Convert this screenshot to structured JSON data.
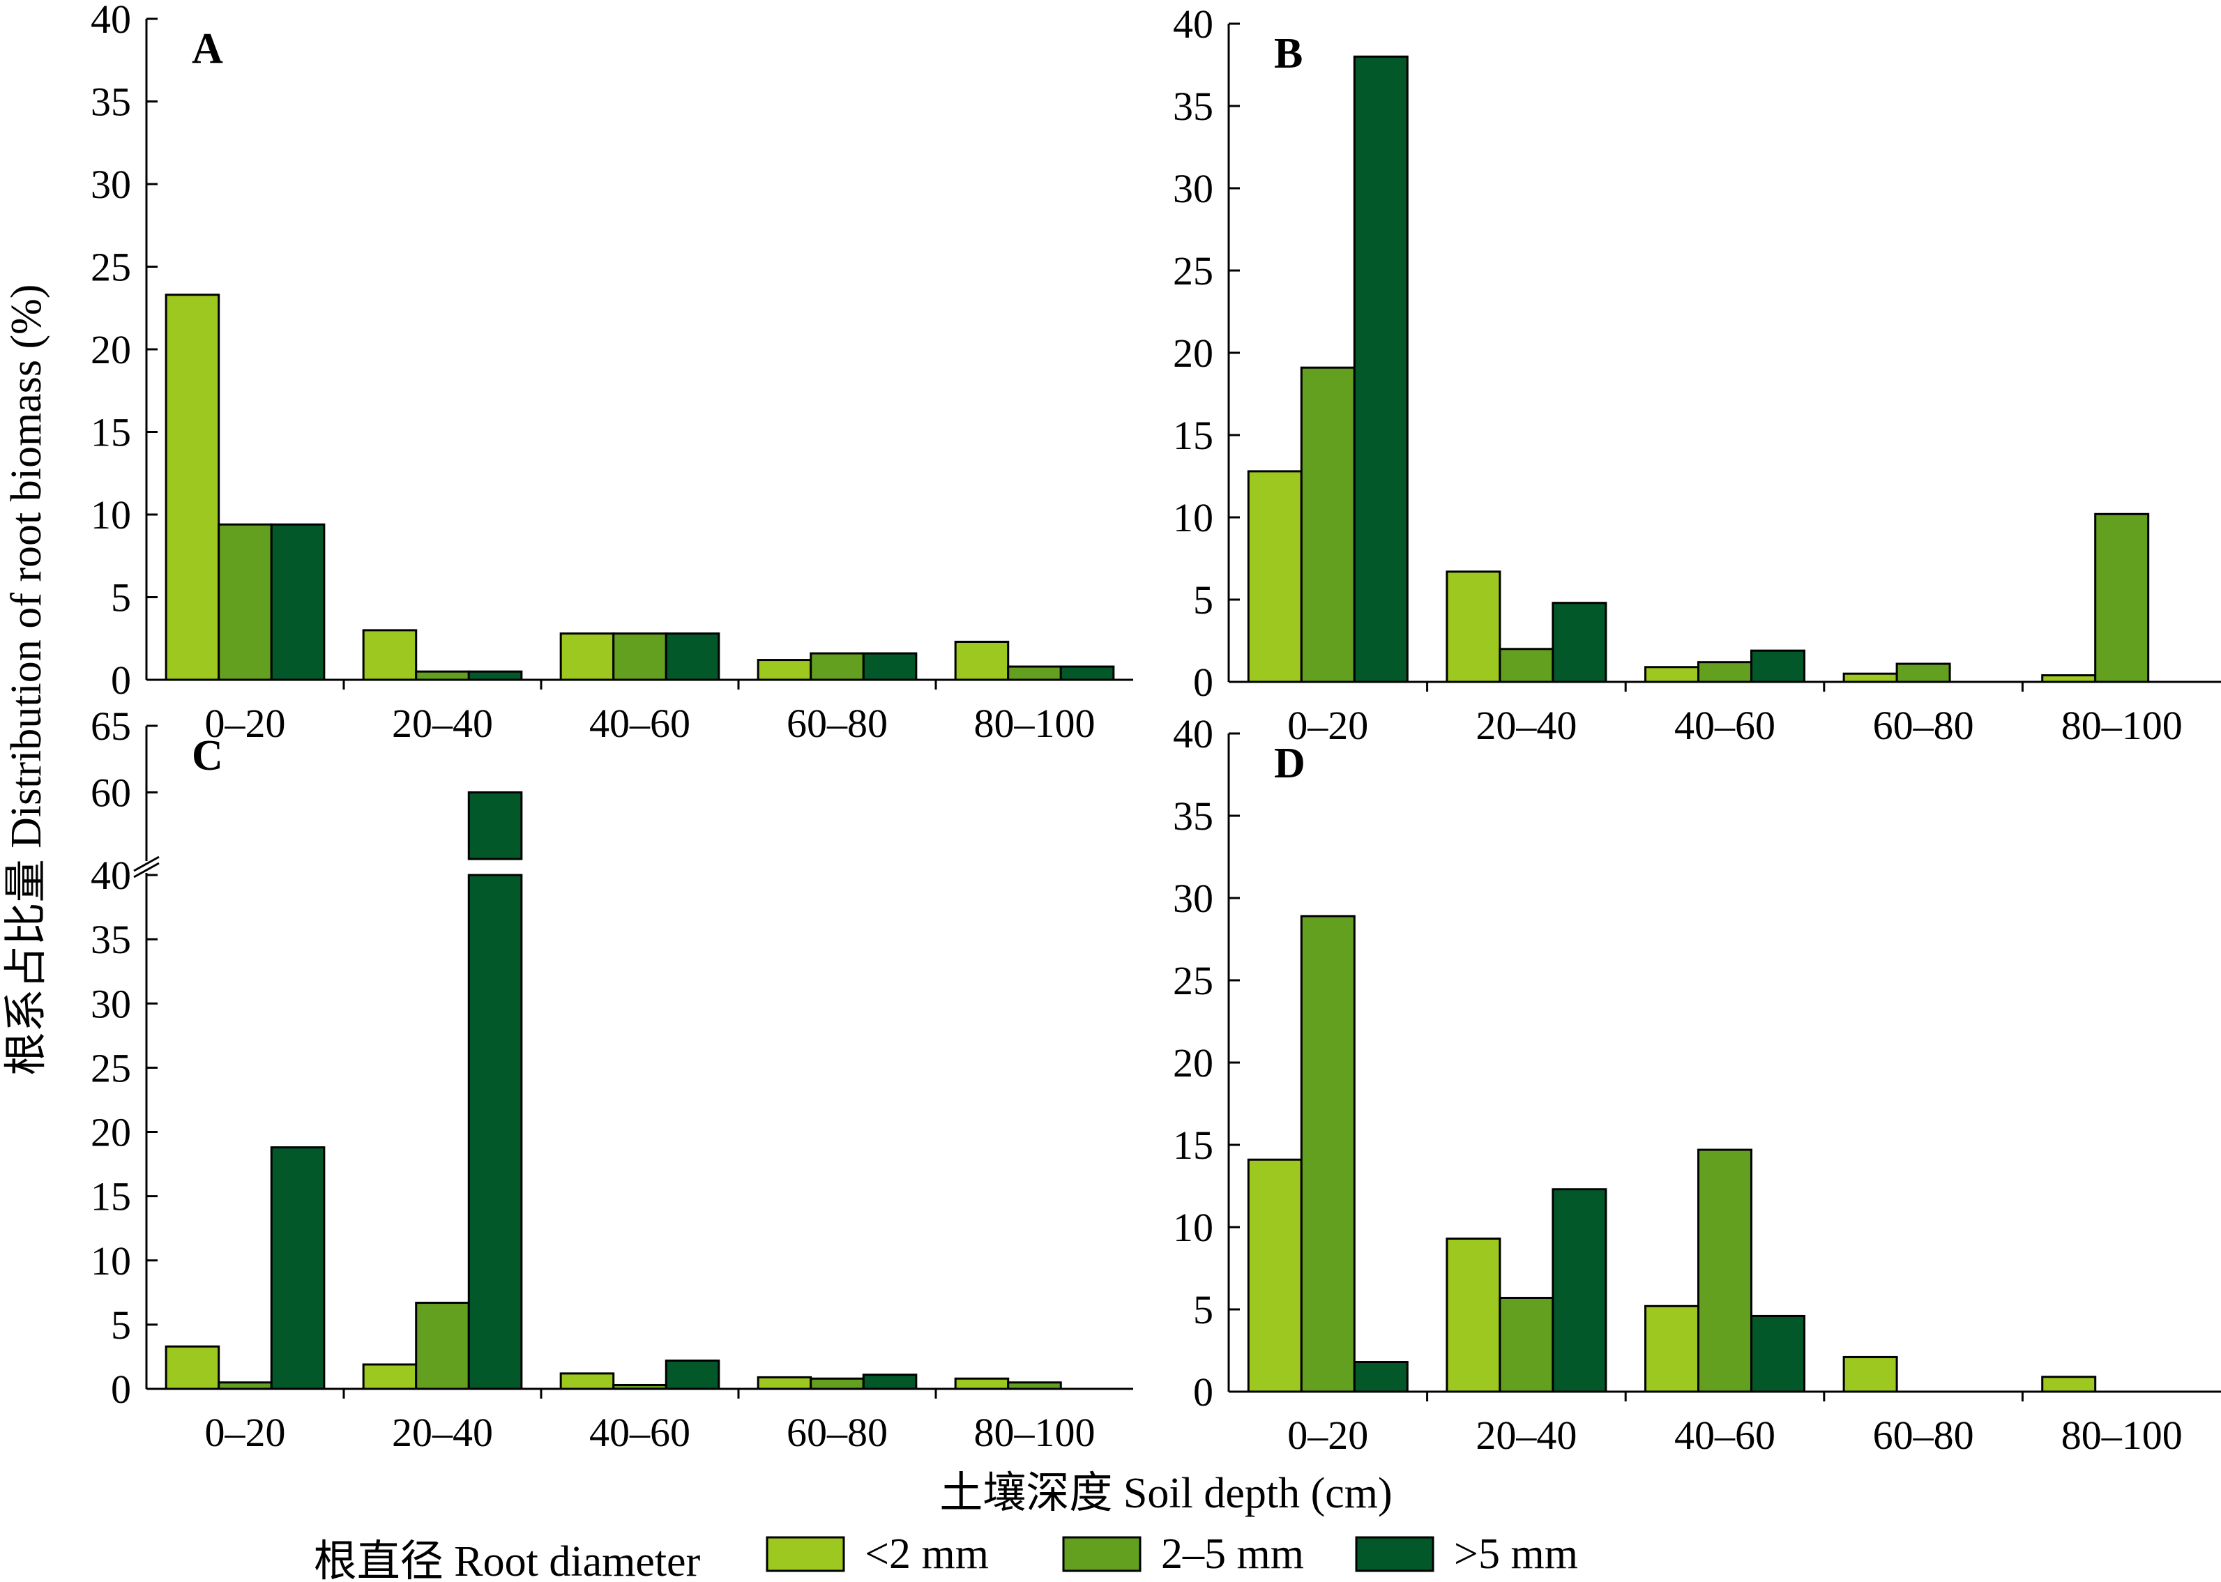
{
  "figure": {
    "ylabel": "根系占比量 Distribution of root biomass (%)",
    "xlabel": "土壤深度 Soil depth (cm)",
    "legend_title": "根直径 Root diameter"
  },
  "colors": {
    "lt2": "#9dc81f",
    "2to5": "#63a01f",
    "gt5": "#03582a",
    "stroke": "#000000"
  },
  "chart_data": [
    {
      "type": "bar",
      "panel": "A",
      "categories": [
        "0–20",
        "20–40",
        "40–60",
        "60–80",
        "80–100"
      ],
      "ylim": [
        0,
        40
      ],
      "yticks": [
        0,
        5,
        10,
        15,
        20,
        25,
        30,
        35,
        40
      ],
      "series": [
        {
          "name": "<2 mm",
          "color_key": "lt2",
          "values": [
            23.3,
            3.0,
            2.8,
            1.2,
            2.3
          ]
        },
        {
          "name": "2–5 mm",
          "color_key": "2to5",
          "values": [
            9.4,
            0.5,
            2.8,
            1.6,
            0.8
          ]
        },
        {
          "name": ">5 mm",
          "color_key": "gt5",
          "values": [
            9.4,
            0.5,
            2.8,
            1.6,
            0.8
          ]
        }
      ]
    },
    {
      "type": "bar",
      "panel": "B",
      "categories": [
        "0–20",
        "20–40",
        "40–60",
        "60–80",
        "80–100"
      ],
      "ylim": [
        0,
        40
      ],
      "yticks": [
        0,
        5,
        10,
        15,
        20,
        25,
        30,
        35,
        40
      ],
      "series": [
        {
          "name": "<2 mm",
          "color_key": "lt2",
          "values": [
            12.8,
            6.7,
            0.9,
            0.5,
            0.4
          ]
        },
        {
          "name": "2–5 mm",
          "color_key": "2to5",
          "values": [
            19.1,
            2.0,
            1.2,
            1.1,
            10.2
          ]
        },
        {
          "name": ">5 mm",
          "color_key": "gt5",
          "values": [
            38.0,
            4.8,
            1.9,
            0,
            0
          ]
        }
      ]
    },
    {
      "type": "bar",
      "panel": "C",
      "categories": [
        "0–20",
        "20–40",
        "40–60",
        "60–80",
        "80–100"
      ],
      "ylim": [
        0,
        65
      ],
      "axis_break": [
        40,
        55
      ],
      "yticks": [
        0,
        5,
        10,
        15,
        20,
        25,
        30,
        35,
        40,
        60,
        65
      ],
      "series": [
        {
          "name": "<2 mm",
          "color_key": "lt2",
          "values": [
            3.3,
            1.9,
            1.2,
            0.9,
            0.8
          ]
        },
        {
          "name": "2–5 mm",
          "color_key": "2to5",
          "values": [
            0.5,
            6.7,
            0.3,
            0.8,
            0.5
          ]
        },
        {
          "name": ">5 mm",
          "color_key": "gt5",
          "values": [
            18.8,
            60.0,
            2.2,
            1.1,
            0
          ]
        }
      ]
    },
    {
      "type": "bar",
      "panel": "D",
      "categories": [
        "0–20",
        "20–40",
        "40–60",
        "60–80",
        "80–100"
      ],
      "ylim": [
        0,
        40
      ],
      "yticks": [
        0,
        5,
        10,
        15,
        20,
        25,
        30,
        35,
        40
      ],
      "series": [
        {
          "name": "<2 mm",
          "color_key": "lt2",
          "values": [
            14.1,
            9.3,
            5.2,
            2.1,
            0.9
          ]
        },
        {
          "name": "2–5 mm",
          "color_key": "2to5",
          "values": [
            28.9,
            5.7,
            14.7,
            0,
            0
          ]
        },
        {
          "name": ">5 mm",
          "color_key": "gt5",
          "values": [
            1.8,
            12.3,
            4.6,
            0,
            0
          ]
        }
      ]
    }
  ]
}
